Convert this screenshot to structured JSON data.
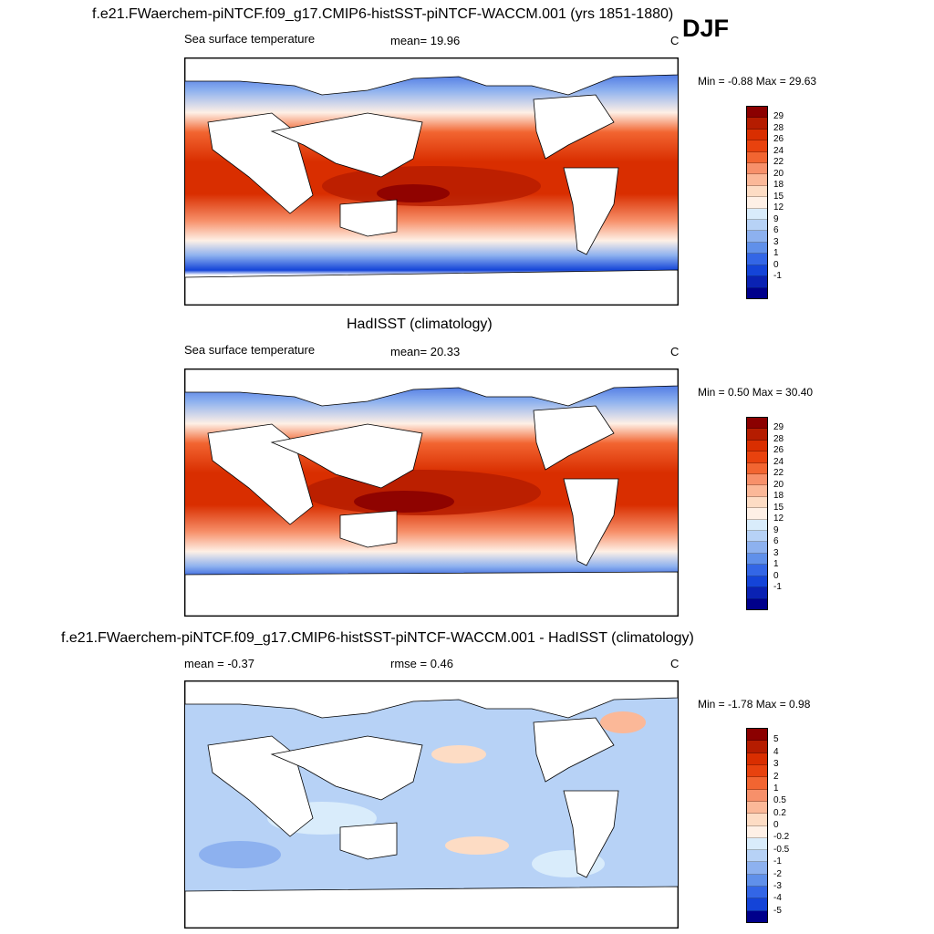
{
  "header": {
    "title": "f.e21.FWaerchem-piNTCF.f09_g17.CMIP6-histSST-piNTCF-WACCM.001 (yrs 1851-1880)",
    "season": "DJF"
  },
  "panel_model": {
    "variable": "Sea surface temperature",
    "stat": "mean=  19.96",
    "units": "C",
    "minmax": "Min =  -0.88 Max =  29.63"
  },
  "panel_obs": {
    "title": "HadISST (climatology)",
    "variable": "Sea surface temperature",
    "stat": "mean=  20.33",
    "units": "C",
    "minmax": "Min =   0.50 Max =  30.40"
  },
  "panel_diff": {
    "title": "f.e21.FWaerchem-piNTCF.f09_g17.CMIP6-histSST-piNTCF-WACCM.001 - HadISST (climatology)",
    "stat_mean": "mean =  -0.37",
    "stat_rmse": "rmse =   0.46",
    "units": "C",
    "minmax": "Min =  -1.78 Max =   0.98"
  },
  "colorbar_sst": {
    "labels": [
      "29",
      "28",
      "26",
      "24",
      "22",
      "20",
      "18",
      "15",
      "12",
      "9",
      "6",
      "3",
      "1",
      "0",
      "-1"
    ],
    "colors": [
      "#8b0000",
      "#b51c00",
      "#d92e00",
      "#e8420e",
      "#f26531",
      "#f7906a",
      "#fbb898",
      "#fddcc4",
      "#fef0e6",
      "#d9ecfb",
      "#b7d2f6",
      "#8db1ef",
      "#6090ea",
      "#3366e6",
      "#1444d8",
      "#0a22b3",
      "#00008b"
    ]
  },
  "colorbar_diff": {
    "labels": [
      "5",
      "4",
      "3",
      "2",
      "1",
      "0.5",
      "0.2",
      "0",
      "-0.2",
      "-0.5",
      "-1",
      "-2",
      "-3",
      "-4",
      "-5"
    ],
    "colors": [
      "#8b0000",
      "#b51c00",
      "#d92e00",
      "#e8420e",
      "#f26531",
      "#f7906a",
      "#fbb898",
      "#fddcc4",
      "#fef0e6",
      "#d9ecfb",
      "#b7d2f6",
      "#8db1ef",
      "#6090ea",
      "#3366e6",
      "#1444d8",
      "#00008b"
    ]
  }
}
